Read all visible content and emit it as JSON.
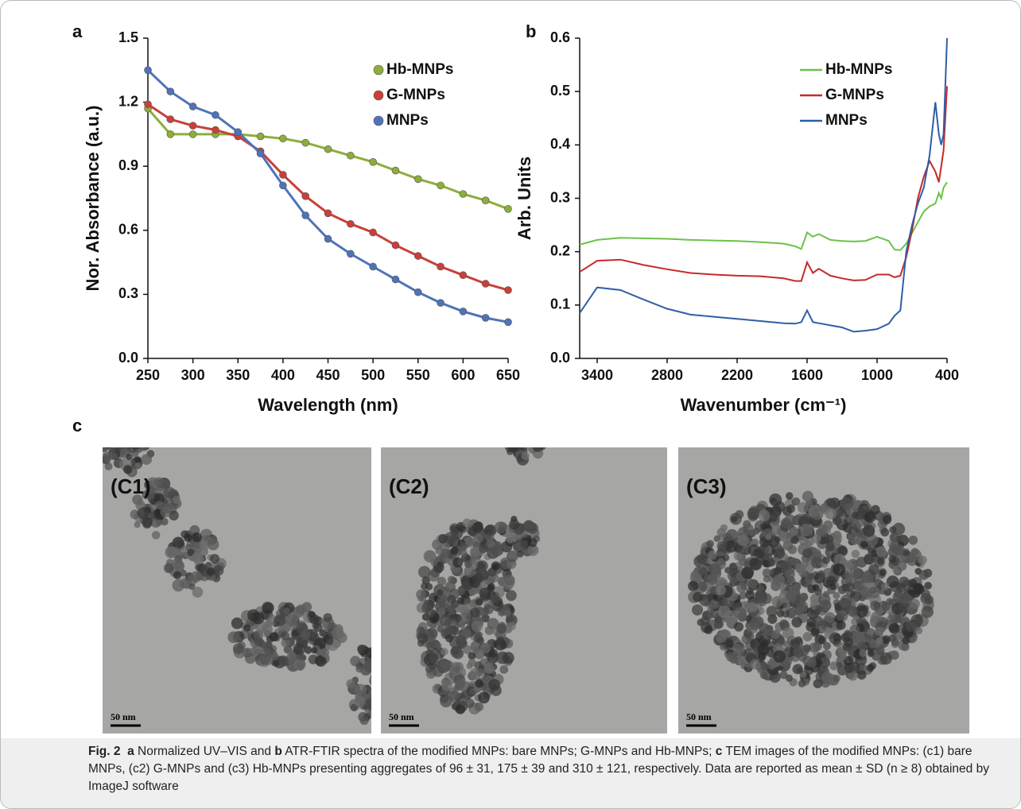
{
  "chart_data": [
    {
      "type": "line",
      "panel": "a",
      "xlabel": "Wavelength (nm)",
      "ylabel": "Nor. Absorbance (a.u.)",
      "x": [
        250,
        275,
        300,
        325,
        350,
        375,
        400,
        425,
        450,
        475,
        500,
        525,
        550,
        575,
        600,
        625,
        650
      ],
      "series": [
        {
          "name": "Hb-MNPs",
          "color": "#8dae3a",
          "values": [
            1.17,
            1.05,
            1.05,
            1.05,
            1.05,
            1.04,
            1.03,
            1.01,
            0.98,
            0.95,
            0.92,
            0.88,
            0.84,
            0.81,
            0.77,
            0.74,
            0.7
          ]
        },
        {
          "name": "G-MNPs",
          "color": "#c9403a",
          "values": [
            1.19,
            1.12,
            1.09,
            1.07,
            1.04,
            0.97,
            0.86,
            0.76,
            0.68,
            0.63,
            0.59,
            0.53,
            0.48,
            0.43,
            0.39,
            0.35,
            0.32
          ]
        },
        {
          "name": "MNPs",
          "color": "#4f73b8",
          "values": [
            1.35,
            1.25,
            1.18,
            1.14,
            1.06,
            0.96,
            0.81,
            0.67,
            0.56,
            0.49,
            0.43,
            0.37,
            0.31,
            0.26,
            0.22,
            0.19,
            0.17
          ]
        }
      ],
      "xlim": [
        250,
        650
      ],
      "xticks": [
        250,
        300,
        350,
        400,
        450,
        500,
        550,
        600,
        650
      ],
      "ylim": [
        0,
        1.5
      ],
      "yticks": [
        {
          "value": 0,
          "label": "0.0"
        },
        0.3,
        0.6,
        0.9,
        1.2,
        1.5
      ],
      "markers": true,
      "legend": "top-right"
    },
    {
      "type": "line",
      "panel": "b",
      "xlabel": "Wavenumber (cm⁻¹)",
      "ylabel": "Arb. Units",
      "x": [
        3550,
        3400,
        3200,
        3000,
        2800,
        2600,
        2400,
        2200,
        2000,
        1800,
        1700,
        1650,
        1600,
        1550,
        1500,
        1400,
        1300,
        1200,
        1100,
        1000,
        900,
        850,
        800,
        750,
        700,
        650,
        600,
        550,
        500,
        470,
        450,
        430,
        400
      ],
      "series": [
        {
          "name": "Hb-MNPs",
          "color": "#6cc24a",
          "values": [
            0.213,
            0.222,
            0.226,
            0.225,
            0.224,
            0.222,
            0.221,
            0.22,
            0.218,
            0.215,
            0.21,
            0.205,
            0.236,
            0.228,
            0.233,
            0.222,
            0.22,
            0.219,
            0.22,
            0.228,
            0.22,
            0.204,
            0.203,
            0.215,
            0.235,
            0.255,
            0.275,
            0.285,
            0.29,
            0.31,
            0.3,
            0.32,
            0.33
          ]
        },
        {
          "name": "G-MNPs",
          "color": "#c62a2a",
          "values": [
            0.162,
            0.183,
            0.185,
            0.175,
            0.167,
            0.16,
            0.157,
            0.155,
            0.154,
            0.15,
            0.145,
            0.145,
            0.18,
            0.16,
            0.168,
            0.155,
            0.15,
            0.146,
            0.147,
            0.157,
            0.157,
            0.152,
            0.155,
            0.19,
            0.24,
            0.3,
            0.34,
            0.37,
            0.35,
            0.33,
            0.36,
            0.39,
            0.51
          ]
        },
        {
          "name": "MNPs",
          "color": "#2f5ea6",
          "values": [
            0.085,
            0.133,
            0.128,
            0.11,
            0.093,
            0.082,
            0.078,
            0.074,
            0.07,
            0.066,
            0.065,
            0.068,
            0.09,
            0.068,
            0.066,
            0.062,
            0.058,
            0.05,
            0.052,
            0.055,
            0.065,
            0.08,
            0.09,
            0.2,
            0.25,
            0.29,
            0.32,
            0.38,
            0.48,
            0.42,
            0.4,
            0.42,
            0.6
          ]
        }
      ],
      "xlim": [
        3550,
        400
      ],
      "xticks": [
        3400,
        2800,
        2200,
        1600,
        1000,
        400
      ],
      "ylim": [
        0,
        0.6
      ],
      "yticks": [
        {
          "value": 0,
          "label": "0.0"
        },
        0.1,
        0.2,
        0.3,
        0.4,
        0.5,
        0.6
      ],
      "markers": false,
      "legend": "top-right"
    }
  ],
  "panel_c": {
    "label": "c",
    "images": [
      {
        "label": "(C1)",
        "scale_bar": "50 nm"
      },
      {
        "label": "(C2)",
        "scale_bar": "50 nm"
      },
      {
        "label": "(C3)",
        "scale_bar": "50 nm"
      }
    ]
  },
  "caption": [
    {
      "text": "Fig. 2",
      "bold": true
    },
    {
      "text": "  a",
      "bold": true
    },
    {
      "text": " Normalized UV–VIS and ",
      "bold": false
    },
    {
      "text": "b",
      "bold": true
    },
    {
      "text": " ATR-FTIR spectra of the modified MNPs: bare MNPs; G-MNPs and Hb-MNPs; ",
      "bold": false
    },
    {
      "text": "c",
      "bold": true
    },
    {
      "text": " TEM images of the modified MNPs: (c1) bare MNPs, (c2) G-MNPs and (c3) Hb-MNPs presenting aggregates of 96 ± 31, 175 ± 39 and 310 ± 121, respectively. Data are reported as mean ± SD (n ≥ 8) obtained by ImageJ software",
      "bold": false
    }
  ]
}
